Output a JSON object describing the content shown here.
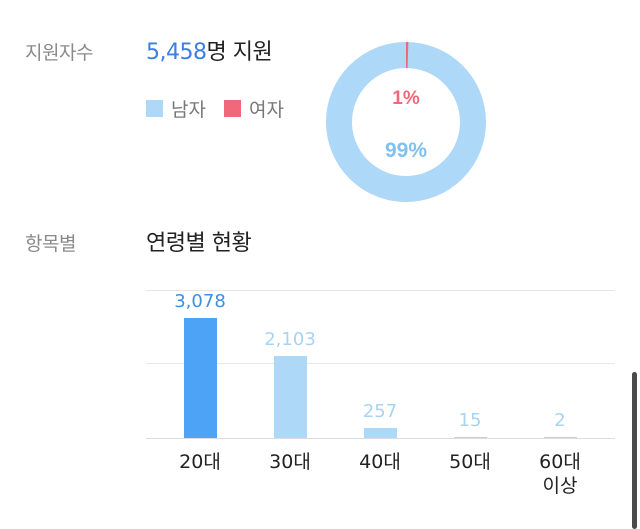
{
  "applicants": {
    "label": "지원자수",
    "count": "5,458",
    "suffix": "명 지원",
    "legend": [
      {
        "label": "남자",
        "color": "#aed8f7"
      },
      {
        "label": "여자",
        "color": "#f0687a"
      }
    ]
  },
  "gender_donut": {
    "male_percent_label": "99%",
    "female_percent_label": "1%",
    "male_color": "#aed8f7",
    "female_color": "#f0687a",
    "male_fraction": 0.99,
    "female_fraction": 0.01
  },
  "age_section": {
    "label": "항목별",
    "title": "연령별 현황"
  },
  "chart_data": {
    "type": "bar",
    "categories": [
      "20대",
      "30대",
      "40대",
      "50대",
      "60대\n이상"
    ],
    "values": [
      3078,
      2103,
      257,
      15,
      2
    ],
    "value_labels": [
      "3,078",
      "2,103",
      "257",
      "15",
      "2"
    ],
    "ylim": [
      0,
      3800
    ],
    "grid": true,
    "highlight_color": "#4da3f5",
    "bar_color": "#aed8f7",
    "highlight_index": 0
  }
}
